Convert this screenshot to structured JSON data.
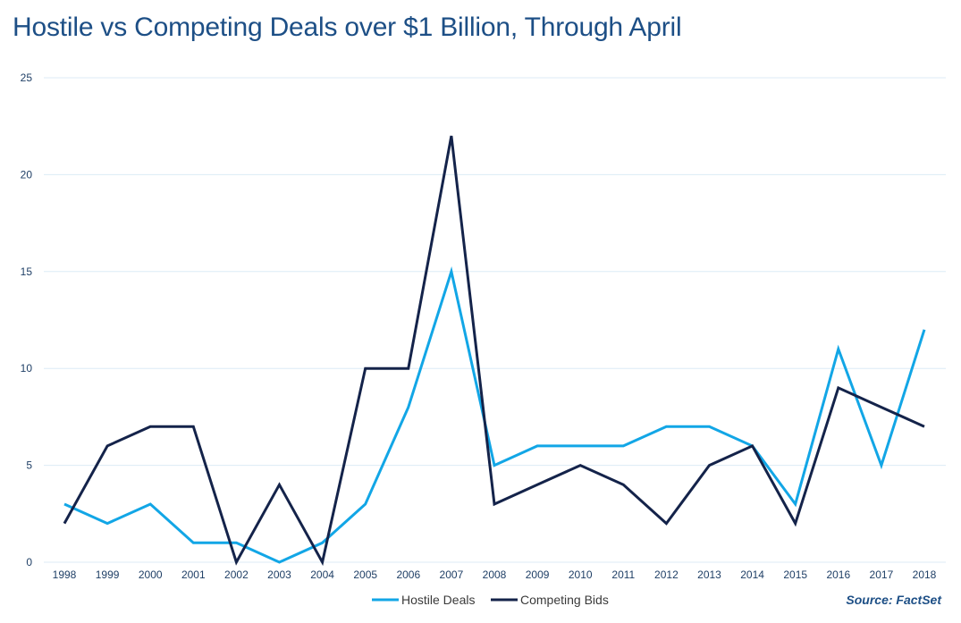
{
  "page": {
    "source_label": "Source: FactSet"
  },
  "colors": {
    "title": "#1d4f86",
    "grid": "#dcebf5",
    "hostile": "#12a6e6",
    "competing": "#14234a"
  },
  "chart_data": {
    "type": "line",
    "title": "Hostile vs Competing Deals over $1 Billion, Through April",
    "xlabel": "",
    "ylabel": "",
    "categories": [
      "1998",
      "1999",
      "2000",
      "2001",
      "2002",
      "2003",
      "2004",
      "2005",
      "2006",
      "2007",
      "2008",
      "2009",
      "2010",
      "2011",
      "2012",
      "2013",
      "2014",
      "2015",
      "2016",
      "2017",
      "2018"
    ],
    "series": [
      {
        "name": "Hostile Deals",
        "color": "#12a6e6",
        "values": [
          3,
          2,
          3,
          1,
          1,
          0,
          1,
          3,
          8,
          15,
          5,
          6,
          6,
          6,
          7,
          7,
          6,
          3,
          11,
          5,
          12
        ]
      },
      {
        "name": "Competing Bids",
        "color": "#14234a",
        "values": [
          2,
          6,
          7,
          7,
          0,
          4,
          0,
          10,
          10,
          22,
          3,
          4,
          5,
          4,
          2,
          5,
          6,
          2,
          9,
          8,
          7
        ]
      }
    ],
    "ylim": [
      0,
      25
    ],
    "yticks": [
      0,
      5,
      10,
      15,
      20,
      25
    ],
    "grid": "horizontal",
    "legend_position": "bottom-center"
  }
}
